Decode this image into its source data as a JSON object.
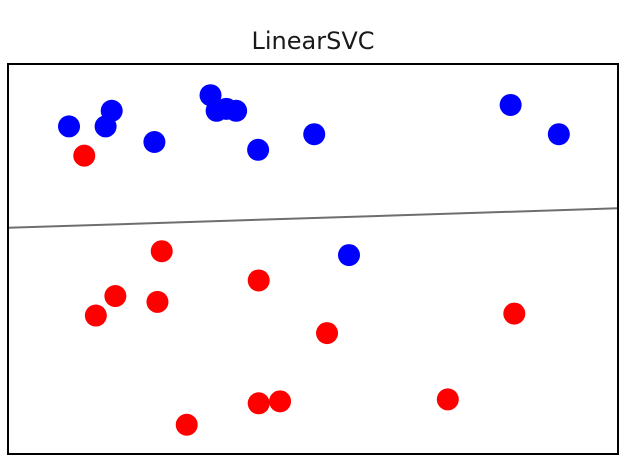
{
  "chart_data": {
    "type": "scatter",
    "title": "LinearSVC",
    "xlabel": "",
    "ylabel": "",
    "xlim": [
      0,
      100
    ],
    "ylim": [
      0,
      100
    ],
    "grid": false,
    "ticks": false,
    "series": [
      {
        "class": "positive",
        "color": "#0000ff",
        "points": [
          {
            "x": 10,
            "y": 84
          },
          {
            "x": 17,
            "y": 88
          },
          {
            "x": 16,
            "y": 84
          },
          {
            "x": 24,
            "y": 80
          },
          {
            "x": 33.2,
            "y": 92
          },
          {
            "x": 34.2,
            "y": 88
          },
          {
            "x": 35.8,
            "y": 88.5
          },
          {
            "x": 37.4,
            "y": 88
          },
          {
            "x": 41,
            "y": 78
          },
          {
            "x": 50.2,
            "y": 82
          },
          {
            "x": 82.4,
            "y": 89.5
          },
          {
            "x": 90.3,
            "y": 82
          },
          {
            "x": 55.9,
            "y": 51
          }
        ]
      },
      {
        "class": "negative",
        "color": "#ff0000",
        "points": [
          {
            "x": 12.5,
            "y": 76.5
          },
          {
            "x": 25.2,
            "y": 52
          },
          {
            "x": 17.6,
            "y": 40.5
          },
          {
            "x": 14.4,
            "y": 35.5
          },
          {
            "x": 24.5,
            "y": 39
          },
          {
            "x": 41.1,
            "y": 44.5
          },
          {
            "x": 52.3,
            "y": 31
          },
          {
            "x": 83,
            "y": 36
          },
          {
            "x": 41.1,
            "y": 13
          },
          {
            "x": 44.6,
            "y": 13.5
          },
          {
            "x": 72.1,
            "y": 14
          },
          {
            "x": 29.3,
            "y": 7.5
          }
        ]
      }
    ],
    "decision_boundary": {
      "x": [
        0,
        100
      ],
      "y": [
        58,
        63
      ]
    }
  },
  "colors": {
    "boundary_line": "#6e6e6e",
    "frame": "#000000"
  }
}
